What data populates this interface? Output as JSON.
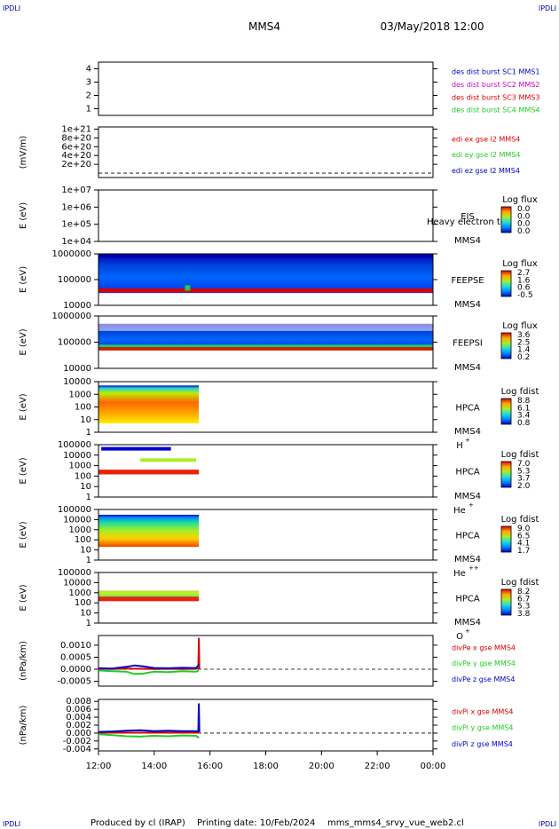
{
  "header": {
    "corner_tl": "IPDLI",
    "corner_tr": "IPDLI",
    "corner_bl": "IPDLI",
    "corner_br": "IPDLI",
    "mission": "MMS4",
    "datetime": "03/May/2018 12:00"
  },
  "footer": {
    "produced": "Produced by cl (IRAP)",
    "printing": "Printing date: 10/Feb/2024",
    "file": "mms_mms4_srvy_vue_web2.cl"
  },
  "colors": {
    "red": "#dd0000",
    "green": "#22cc22",
    "blue": "#0000cc",
    "magenta": "#cc00cc"
  },
  "x_axis": {
    "range_hours": [
      12,
      24
    ],
    "ticks": [
      12,
      14,
      16,
      18,
      20,
      22,
      24
    ],
    "tick_labels": [
      "12:00",
      "14:00",
      "16:00",
      "18:00",
      "20:00",
      "22:00",
      "00:00"
    ]
  },
  "chart_data": [
    {
      "type": "line",
      "id": "des-dist-burst",
      "ylim": [
        0.5,
        4.5
      ],
      "y_ticks": [
        1,
        2,
        3,
        4
      ],
      "y_tick_labels": [
        "1",
        "2",
        "3",
        "4"
      ],
      "ylabel": "",
      "legend": [
        {
          "text": "des dist burst SC1 MMS1",
          "color": "#0000cc"
        },
        {
          "text": "des dist burst SC2 MMS2",
          "color": "#cc00cc"
        },
        {
          "text": "des dist burst SC3 MMS3",
          "color": "#dd0000"
        },
        {
          "text": "des dist burst SC4 MMS4",
          "color": "#22cc22"
        }
      ],
      "series": []
    },
    {
      "type": "line",
      "id": "edi-e-gse",
      "ylabel": "(mV/m)",
      "ylim": [
        -1e+20,
        1.05e+21
      ],
      "y_ticks": [
        2e+20,
        4e+20,
        6e+20,
        8e+20,
        1e+21
      ],
      "y_tick_labels": [
        "2e+20",
        "4e+20",
        "6e+20",
        "8e+20",
        "1e+21"
      ],
      "zero_line": true,
      "legend": [
        {
          "text": "edi ex gse l2 MMS4",
          "color": "#dd0000"
        },
        {
          "text": "edi ey gse l2 MMS4",
          "color": "#22cc22"
        },
        {
          "text": "edi ez gse l2 MMS4",
          "color": "#0000cc"
        }
      ],
      "series": []
    },
    {
      "type": "heatmap",
      "id": "eis",
      "ylabel": "E (eV)",
      "scale": "log",
      "ylim": [
        10000.0,
        10000000.0
      ],
      "y_ticks": [
        10000.0,
        100000.0,
        1000000.0,
        10000000.0
      ],
      "y_tick_labels": [
        "1e+04",
        "1e+05",
        "1e+06",
        "1e+07"
      ],
      "label_main": "EIS",
      "label_sub": "MMS4",
      "overlay_text": "Heavy electron to",
      "colorbar_title": "Log flux",
      "colorbar_ticks": [
        "0.0",
        "0.0",
        "0.0",
        "0.0"
      ],
      "data_hours": []
    },
    {
      "type": "heatmap",
      "id": "feepse",
      "ylabel": "E (eV)",
      "scale": "log",
      "ylim": [
        10000.0,
        1000000.0
      ],
      "y_ticks": [
        10000.0,
        100000.0,
        1000000.0
      ],
      "y_tick_labels": [
        "10000",
        "100000",
        "1000000"
      ],
      "label_main": "FEEPSE",
      "label_sub": "MMS4",
      "colorbar_title": "Log flux",
      "colorbar_ticks": [
        "2.7",
        "1.6",
        "0.6",
        "-0.5"
      ],
      "data_hours": [
        12,
        24
      ],
      "band_energy_range": [
        30000.0,
        1000000.0
      ]
    },
    {
      "type": "heatmap",
      "id": "feepsi",
      "ylabel": "E (eV)",
      "scale": "log",
      "ylim": [
        10000.0,
        1000000.0
      ],
      "y_ticks": [
        10000.0,
        100000.0,
        1000000.0
      ],
      "y_tick_labels": [
        "10000",
        "100000",
        "1000000"
      ],
      "label_main": "FEEPSI",
      "label_sub": "MMS4",
      "colorbar_title": "Log flux",
      "colorbar_ticks": [
        "3.6",
        "2.5",
        "1.4",
        "0.2"
      ],
      "data_hours": [
        12,
        24
      ],
      "band_energy_range": [
        50000.0,
        500000.0
      ]
    },
    {
      "type": "heatmap",
      "id": "hpca-h",
      "ylabel": "E (eV)",
      "scale": "log",
      "ylim": [
        1,
        10000.0
      ],
      "y_ticks": [
        1,
        10,
        100,
        1000,
        10000
      ],
      "y_tick_labels": [
        "1",
        "10",
        "100",
        "1000",
        "10000"
      ],
      "label_main": "HPCA",
      "label_sub": "MMS4",
      "species": "H",
      "species_sup": "+",
      "colorbar_title": "Log fdist",
      "colorbar_ticks": [
        "8.8",
        "6.1",
        "3.4",
        "0.8"
      ],
      "data_hours": [
        12,
        15.6
      ],
      "band_energy_range": [
        5,
        5000
      ]
    },
    {
      "type": "heatmap",
      "id": "hpca-he",
      "ylabel": "E (eV)",
      "scale": "log",
      "ylim": [
        1,
        100000.0
      ],
      "y_ticks": [
        1,
        10,
        100,
        1000,
        10000,
        100000
      ],
      "y_tick_labels": [
        "1",
        "10",
        "100",
        "1000",
        "10000",
        "100000"
      ],
      "label_main": "HPCA",
      "label_sub": "MMS4",
      "species": "He",
      "species_sup": "+",
      "colorbar_title": "Log fdist",
      "colorbar_ticks": [
        "7.0",
        "5.3",
        "3.7",
        "2.0"
      ],
      "data_hours": [
        12,
        15.6
      ],
      "band_energy_range": [
        150,
        400
      ]
    },
    {
      "type": "heatmap",
      "id": "hpca-hepp",
      "ylabel": "E (eV)",
      "scale": "log",
      "ylim": [
        1,
        100000.0
      ],
      "y_ticks": [
        1,
        10,
        100,
        1000,
        10000,
        100000
      ],
      "y_tick_labels": [
        "1",
        "10",
        "100",
        "1000",
        "10000",
        "100000"
      ],
      "label_main": "HPCA",
      "label_sub": "MMS4",
      "species": "He",
      "species_sup": "++",
      "colorbar_title": "Log fdist",
      "colorbar_ticks": [
        "9.0",
        "6.5",
        "4.1",
        "1.7"
      ],
      "data_hours": [
        12,
        15.6
      ],
      "band_energy_range": [
        20,
        30000
      ]
    },
    {
      "type": "heatmap",
      "id": "hpca-o",
      "ylabel": "E (eV)",
      "scale": "log",
      "ylim": [
        1,
        100000.0
      ],
      "y_ticks": [
        1,
        10,
        100,
        1000,
        10000,
        100000
      ],
      "y_tick_labels": [
        "1",
        "10",
        "100",
        "1000",
        "10000",
        "100000"
      ],
      "label_main": "HPCA",
      "label_sub": "MMS4",
      "species": "O",
      "species_sup": "+",
      "colorbar_title": "Log fdist",
      "colorbar_ticks": [
        "8.2",
        "6.7",
        "5.3",
        "3.8"
      ],
      "data_hours": [
        12,
        15.6
      ],
      "band_energy_range": [
        150,
        1500
      ]
    },
    {
      "type": "line",
      "id": "divpe",
      "ylabel": "(nPa/km)",
      "ylim": [
        -0.0007,
        0.0014
      ],
      "y_ticks": [
        -0.0005,
        0,
        0.0005,
        0.001
      ],
      "y_tick_labels": [
        "-0.0005",
        "0.0000",
        "0.0005",
        "0.0010"
      ],
      "zero_line": true,
      "legend": [
        {
          "text": "divPe x gse MMS4",
          "color": "#dd0000"
        },
        {
          "text": "divPe y gse MMS4",
          "color": "#22cc22"
        },
        {
          "text": "divPe z gse MMS4",
          "color": "#0000cc"
        }
      ],
      "series": [
        {
          "name": "divPe x gse MMS4",
          "color": "#dd0000",
          "x": [
            12.0,
            12.5,
            13.0,
            13.5,
            14.0,
            14.5,
            15.0,
            15.5,
            15.58,
            15.6,
            15.62
          ],
          "y": [
            2e-05,
            1e-05,
            3e-05,
            2e-05,
            1e-05,
            2e-05,
            1e-05,
            2e-05,
            5e-05,
            0.0013,
            1e-05
          ]
        },
        {
          "name": "divPe y gse MMS4",
          "color": "#22cc22",
          "x": [
            12.0,
            12.5,
            13.0,
            13.3,
            13.6,
            14.0,
            14.5,
            15.0,
            15.5,
            15.6
          ],
          "y": [
            -5e-05,
            -8e-05,
            -0.0001,
            -0.0002,
            -0.00018,
            -0.0001,
            -0.00012,
            -8e-05,
            -0.0001,
            -5e-05
          ]
        },
        {
          "name": "divPe z gse MMS4",
          "color": "#0000cc",
          "x": [
            12.0,
            12.5,
            13.0,
            13.3,
            13.6,
            14.0,
            14.5,
            15.0,
            15.5,
            15.6
          ],
          "y": [
            4e-05,
            3e-05,
            0.0001,
            0.00016,
            0.00012,
            5e-05,
            4e-05,
            6e-05,
            5e-05,
            0.0002
          ]
        }
      ]
    },
    {
      "type": "line",
      "id": "divpi",
      "ylabel": "(nPa/km)",
      "ylim": [
        -0.0045,
        0.0085
      ],
      "y_ticks": [
        -0.004,
        -0.002,
        0,
        0.002,
        0.004,
        0.006,
        0.008
      ],
      "y_tick_labels": [
        "-0.004",
        "-0.002",
        "0.000",
        "0.002",
        "0.004",
        "0.006",
        "0.008"
      ],
      "zero_line": true,
      "legend": [
        {
          "text": "divPi x gse MMS4",
          "color": "#dd0000"
        },
        {
          "text": "divPi y gse MMS4",
          "color": "#22cc22"
        },
        {
          "text": "divPi z gse MMS4",
          "color": "#0000cc"
        }
      ],
      "series": [
        {
          "name": "divPi x gse MMS4",
          "color": "#dd0000",
          "x": [
            12.0,
            13.0,
            14.0,
            15.0,
            15.6
          ],
          "y": [
            0.0001,
            0.0001,
            0.0001,
            0.0001,
            0.0001
          ]
        },
        {
          "name": "divPi y gse MMS4",
          "color": "#22cc22",
          "x": [
            12.0,
            12.5,
            13.0,
            13.5,
            14.0,
            14.5,
            15.0,
            15.5,
            15.6
          ],
          "y": [
            -0.0003,
            -0.0005,
            -0.0008,
            -0.0009,
            -0.0007,
            -0.0008,
            -0.0006,
            -0.0007,
            -0.0012
          ]
        },
        {
          "name": "divPi z gse MMS4",
          "color": "#0000cc",
          "x": [
            12.0,
            12.5,
            13.0,
            13.5,
            14.0,
            14.5,
            15.0,
            15.5,
            15.58,
            15.6,
            15.62
          ],
          "y": [
            0.0003,
            0.0004,
            0.0006,
            0.0007,
            0.0005,
            0.0006,
            0.0005,
            0.0005,
            0.0004,
            0.0075,
            0.0002
          ]
        }
      ]
    }
  ]
}
